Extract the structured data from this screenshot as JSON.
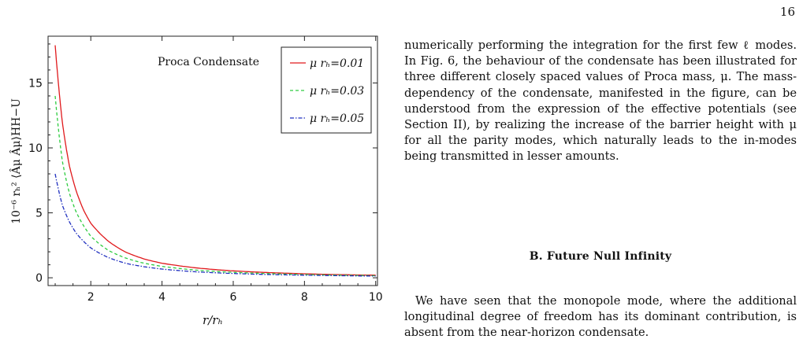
{
  "page_number": "16",
  "figure": {
    "annotation": "Proca Condensate",
    "ylabel": "10⁻⁶ rₕ² ⟨Âμ Âμ⟩HH−U",
    "xlabel": "r/rₕ"
  },
  "chart_data": {
    "type": "line",
    "xlabel": "r/rh",
    "ylabel": "10^-6 r_h^2 <A_mu A^mu>_HH-U",
    "xlim": [
      0.8,
      10.05
    ],
    "ylim": [
      -0.6,
      18.6
    ],
    "xticks": [
      2,
      4,
      6,
      8,
      10
    ],
    "yticks": [
      0,
      5,
      10,
      15
    ],
    "legend_position": "top-right",
    "grid": false,
    "series": [
      {
        "name": "μ rₕ=0.01",
        "color": "#e0191c",
        "dash": "solid",
        "x": [
          1.0,
          1.2,
          1.4,
          1.6,
          1.8,
          2.0,
          2.5,
          3.0,
          3.5,
          4.0,
          5.0,
          6.0,
          7.0,
          8.0,
          9.0,
          10.0
        ],
        "y": [
          17.9,
          12.0,
          8.6,
          6.6,
          5.2,
          4.2,
          2.8,
          1.95,
          1.45,
          1.12,
          0.75,
          0.53,
          0.4,
          0.31,
          0.24,
          0.2
        ]
      },
      {
        "name": "μ rₕ=0.03",
        "color": "#2ecc40",
        "dash": "dashed",
        "x": [
          1.0,
          1.2,
          1.4,
          1.6,
          1.8,
          2.0,
          2.5,
          3.0,
          3.5,
          4.0,
          5.0,
          6.0,
          7.0,
          8.0,
          9.0,
          10.0
        ],
        "y": [
          14.0,
          9.0,
          6.5,
          5.0,
          4.0,
          3.2,
          2.1,
          1.5,
          1.12,
          0.88,
          0.58,
          0.42,
          0.32,
          0.25,
          0.2,
          0.16
        ]
      },
      {
        "name": "μ rₕ=0.05",
        "color": "#1f2fbf",
        "dash": "dashdot",
        "x": [
          1.0,
          1.2,
          1.4,
          1.6,
          1.8,
          2.0,
          2.5,
          3.0,
          3.5,
          4.0,
          5.0,
          6.0,
          7.0,
          8.0,
          9.0,
          10.0
        ],
        "y": [
          8.0,
          5.6,
          4.3,
          3.4,
          2.8,
          2.3,
          1.55,
          1.1,
          0.85,
          0.67,
          0.45,
          0.33,
          0.25,
          0.2,
          0.16,
          0.13
        ]
      }
    ]
  },
  "text": {
    "paragraph1": "numerically performing the integration for the first few ℓ modes. In Fig. 6, the behaviour of the condensate has been illustrated for three different closely spaced values of Proca mass, μ. The mass-dependency of the condensate, manifested in the figure, can be understood from the expression of the effective potentials (see Section II), by realizing the increase of the barrier height with μ for all the parity modes, which naturally leads to the in-modes being transmitted in lesser amounts.",
    "section_heading": "B.  Future Null Infinity",
    "paragraph2": "We have seen that the monopole mode, where the additional longitudinal degree of freedom has its dominant contribution, is absent from the near-horizon condensate."
  }
}
